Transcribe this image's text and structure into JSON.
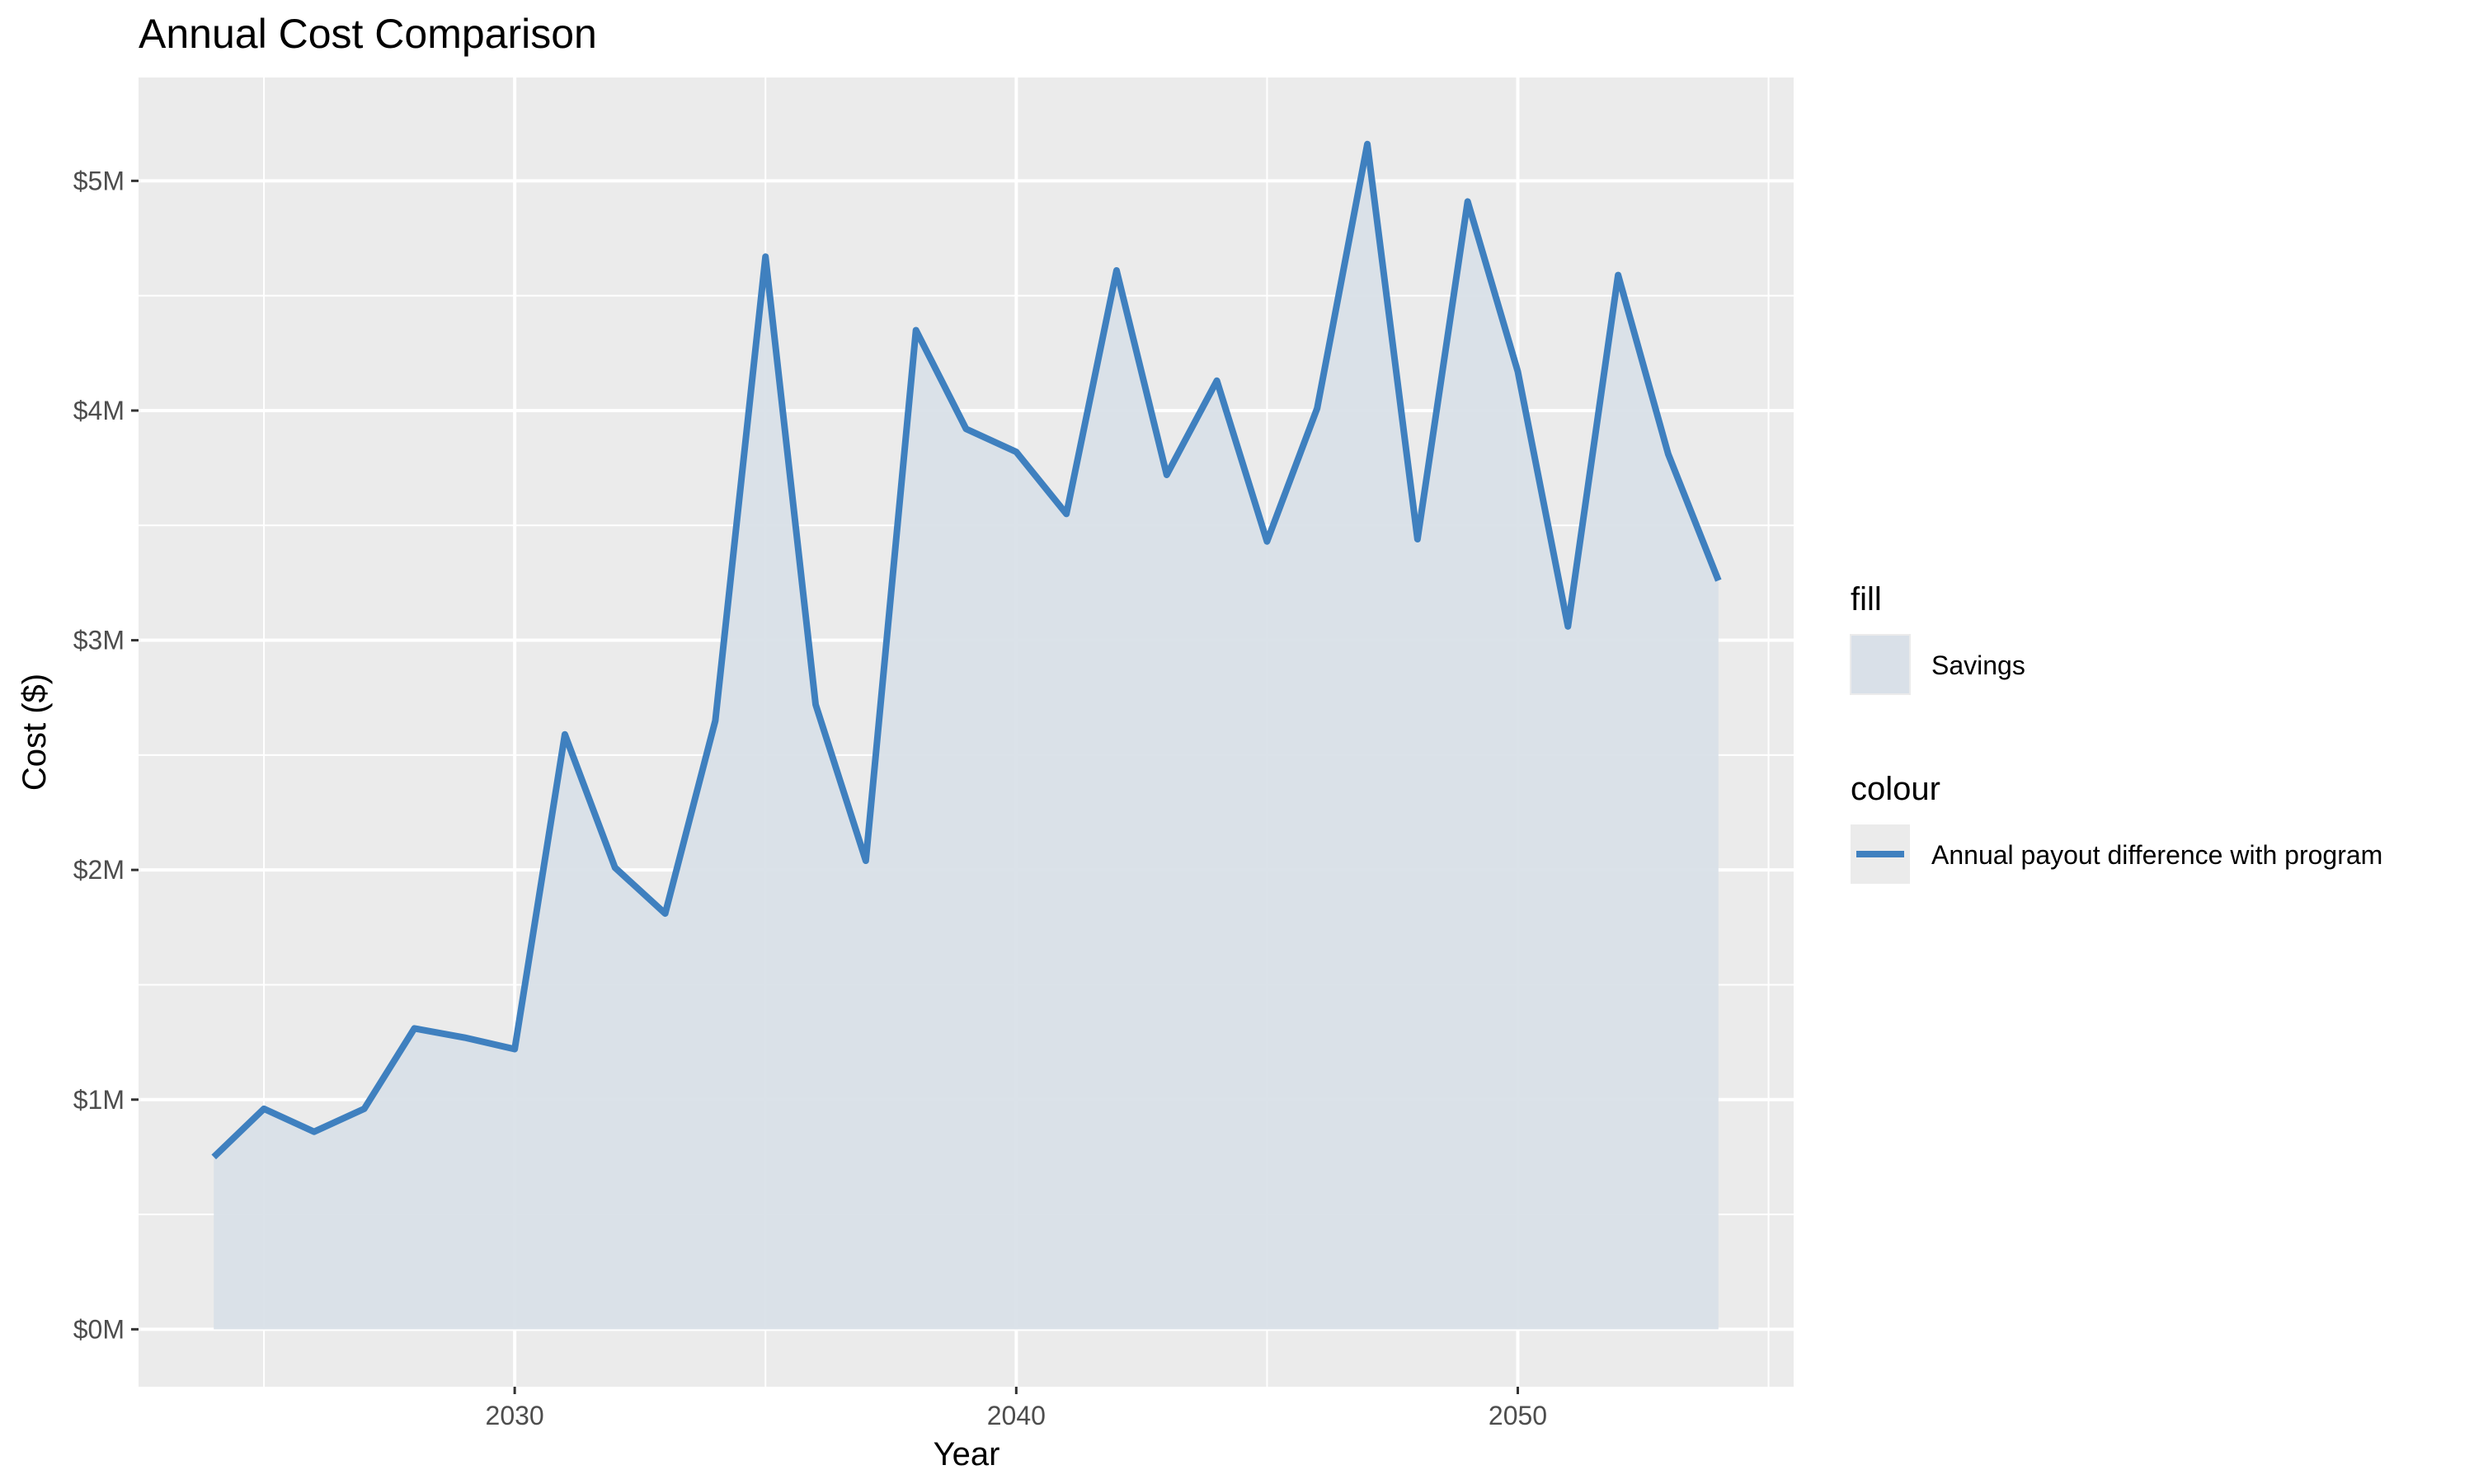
{
  "chart_data": {
    "type": "area",
    "title": "Annual Cost Comparison",
    "xlabel": "Year",
    "ylabel": "Cost ($)",
    "xlim": [
      2022.5,
      2055.5
    ],
    "ylim": [
      -250000,
      5450000
    ],
    "x_ticks": [
      2030,
      2040,
      2050
    ],
    "x_tick_labels": [
      "2030",
      "2040",
      "2050"
    ],
    "y_ticks": [
      0,
      1000000,
      2000000,
      3000000,
      4000000,
      5000000
    ],
    "y_tick_labels": [
      "$0M",
      "$1M",
      "$2M",
      "$3M",
      "$4M",
      "$5M"
    ],
    "x": [
      2024,
      2025,
      2026,
      2027,
      2028,
      2029,
      2030,
      2031,
      2032,
      2033,
      2034,
      2035,
      2036,
      2037,
      2038,
      2039,
      2040,
      2041,
      2042,
      2043,
      2044,
      2045,
      2046,
      2047,
      2048,
      2049,
      2050,
      2051,
      2052,
      2053,
      2054
    ],
    "series": [
      {
        "name": "Annual payout difference with program",
        "fill_name": "Savings",
        "values": [
          750000,
          960000,
          860000,
          960000,
          1310000,
          1270000,
          1220000,
          2590000,
          2010000,
          1810000,
          2650000,
          4670000,
          2720000,
          2040000,
          4350000,
          3920000,
          3820000,
          3550000,
          4610000,
          3720000,
          4130000,
          3430000,
          4010000,
          5160000,
          3440000,
          4910000,
          4170000,
          3060000,
          4590000,
          3810000,
          3260000
        ]
      }
    ],
    "grid": true,
    "legend_position": "right",
    "legend": {
      "fill_title": "fill",
      "fill_label": "Savings",
      "colour_title": "colour",
      "colour_label": "Annual payout difference with program"
    },
    "colors": {
      "line": "#3f80bf",
      "fill": "#d9e0e8",
      "panel": "#ebebeb",
      "grid": "#ffffff"
    }
  }
}
